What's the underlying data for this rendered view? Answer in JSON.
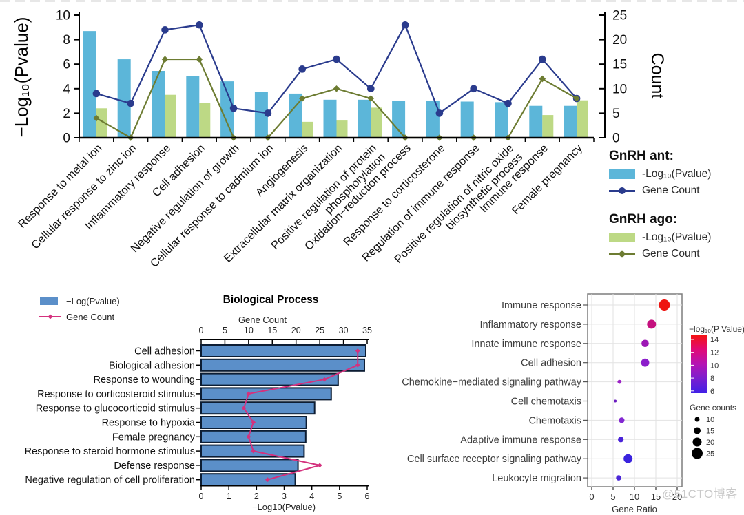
{
  "watermark": "@51CTO博客",
  "chart_data": [
    {
      "id": "go-enrichment-dual-axis",
      "type": "bar",
      "subtype": "grouped-bars-with-count-lines-dual-axis",
      "categories": [
        "Response to metal ion",
        "Cellular response to zinc ion",
        "Inflammatory response",
        "Cell adhesion",
        "Negative regulation of growth",
        "Cellular response to cadmium ion",
        "Angiogenesis",
        "Extracellular matrix organization",
        "Positive regulation of protein\nphosphorylation",
        "Oxidation−reduction process",
        "Response to corticosterone",
        "Regulation of immune response",
        "Positive regulation of nitric oxide\nbiosynthetic process",
        "Immune response",
        "Female pregnancy"
      ],
      "series": [
        {
          "name": "GnRH ant: -Log10(Pvalue)",
          "kind": "bar",
          "axis": "left",
          "color": "#5cb6d9",
          "values": [
            8.7,
            6.4,
            5.45,
            5.0,
            4.6,
            3.75,
            3.6,
            3.1,
            3.1,
            3.0,
            3.0,
            2.95,
            2.9,
            2.6,
            2.6
          ]
        },
        {
          "name": "GnRH ago: -Log10(Pvalue)",
          "kind": "bar",
          "axis": "left",
          "color": "#bdd985",
          "values": [
            2.4,
            0,
            3.5,
            2.85,
            0,
            0,
            1.3,
            1.4,
            2.45,
            0,
            0,
            0,
            0,
            1.85,
            3.05
          ]
        },
        {
          "name": "GnRH ant: Gene Count",
          "kind": "line",
          "marker": "circle",
          "axis": "right",
          "color": "#2a3b8d",
          "values": [
            9,
            7,
            22,
            23,
            6,
            5,
            14,
            16,
            10,
            23,
            5,
            10,
            7,
            16,
            8
          ]
        },
        {
          "name": "GnRH ago: Gene Count",
          "kind": "line",
          "marker": "diamond",
          "axis": "right",
          "color": "#6d7c32",
          "values": [
            4,
            0,
            16,
            16,
            0,
            0,
            8,
            10,
            8,
            0,
            0,
            0,
            0,
            12,
            8
          ]
        }
      ],
      "left_axis": {
        "label": "−Log₁₀(Pvalue)",
        "ticks": [
          0,
          2,
          4,
          6,
          8,
          10
        ],
        "max": 10
      },
      "right_axis": {
        "label": "Count",
        "ticks": [
          0,
          5,
          10,
          15,
          20,
          25
        ],
        "max": 25
      },
      "legend": {
        "groups": [
          {
            "title": "GnRH ant:",
            "items": [
              {
                "swatch": "bar",
                "label": "-Log₁₀(Pvalue)"
              },
              {
                "swatch": "line-circle",
                "label": "Gene Count"
              }
            ]
          },
          {
            "title": "GnRH ago:",
            "items": [
              {
                "swatch": "bar",
                "label": "-Log₁₀(Pvalue)"
              },
              {
                "swatch": "line-diamond",
                "label": "Gene Count"
              }
            ]
          }
        ]
      }
    },
    {
      "id": "biological-process",
      "type": "bar",
      "subtype": "horizontal-bars-with-count-line",
      "title": "Biological Process",
      "categories": [
        "Cell adhesion",
        "Biological adhesion",
        "Response to wounding",
        "Response to corticosteroid stimulus",
        "Response to glucocorticoid stimulus",
        "Response to hypoxia",
        "Female pregnancy",
        "Response to steroid hormone stimulus",
        "Defense response",
        "Negative regulation of cell proliferation"
      ],
      "bars": {
        "name": "−Log(Pvalue)",
        "color": "#5b8fc9",
        "outline": "#0d1d33",
        "values": [
          5.95,
          5.9,
          4.95,
          4.7,
          4.1,
          3.8,
          3.78,
          3.72,
          3.5,
          3.4
        ]
      },
      "line": {
        "name": "Gene Count",
        "color": "#d4317e",
        "values": [
          33,
          33,
          26,
          10,
          9,
          11,
          10,
          11,
          25,
          14
        ]
      },
      "top_axis": {
        "label": "Gene Count",
        "ticks": [
          0,
          5,
          10,
          15,
          20,
          25,
          30,
          35
        ],
        "max": 35
      },
      "bottom_axis": {
        "label": "−Log10(Pvalue)",
        "ticks": [
          0,
          1,
          2,
          3,
          4,
          5,
          6
        ],
        "max": 6
      }
    },
    {
      "id": "gene-ratio-dotplot",
      "type": "scatter",
      "categories": [
        "Immune response",
        "Inflammatory response",
        "Innate immune response",
        "Cell adhesion",
        "Chemokine−mediated signaling pathway",
        "Cell chemotaxis",
        "Chemotaxis",
        "Adaptive immune response",
        "Cell surface receptor signaling pathway",
        "Leukocyte migration"
      ],
      "points": [
        {
          "gene_ratio": 17,
          "gene_count": 25,
          "color": "#ee1410"
        },
        {
          "gene_ratio": 14,
          "gene_count": 20,
          "color": "#c4107e"
        },
        {
          "gene_ratio": 12.5,
          "gene_count": 16,
          "color": "#9d17b5"
        },
        {
          "gene_ratio": 12.5,
          "gene_count": 18,
          "color": "#8c1ecb"
        },
        {
          "gene_ratio": 6.5,
          "gene_count": 8,
          "color": "#9c22c6"
        },
        {
          "gene_ratio": 5.5,
          "gene_count": 5,
          "color": "#6a1bc0"
        },
        {
          "gene_ratio": 7,
          "gene_count": 12,
          "color": "#8328d2"
        },
        {
          "gene_ratio": 6.8,
          "gene_count": 12,
          "color": "#4a23d9"
        },
        {
          "gene_ratio": 8.5,
          "gene_count": 20,
          "color": "#3a23de"
        },
        {
          "gene_ratio": 6.3,
          "gene_count": 11,
          "color": "#4b27d8"
        }
      ],
      "x_axis": {
        "label": "Gene Ratio",
        "ticks": [
          0,
          5,
          10,
          15,
          20
        ]
      },
      "color_legend": {
        "title": "−log₁₀(P Value)",
        "ticks": [
          14,
          12,
          10,
          8,
          6
        ],
        "gradient": [
          "#f51313",
          "#e00a78",
          "#b414b4",
          "#7a1ecf",
          "#4020e6"
        ]
      },
      "size_legend": {
        "title": "Gene counts",
        "sizes": [
          10,
          15,
          20,
          25
        ]
      }
    }
  ]
}
